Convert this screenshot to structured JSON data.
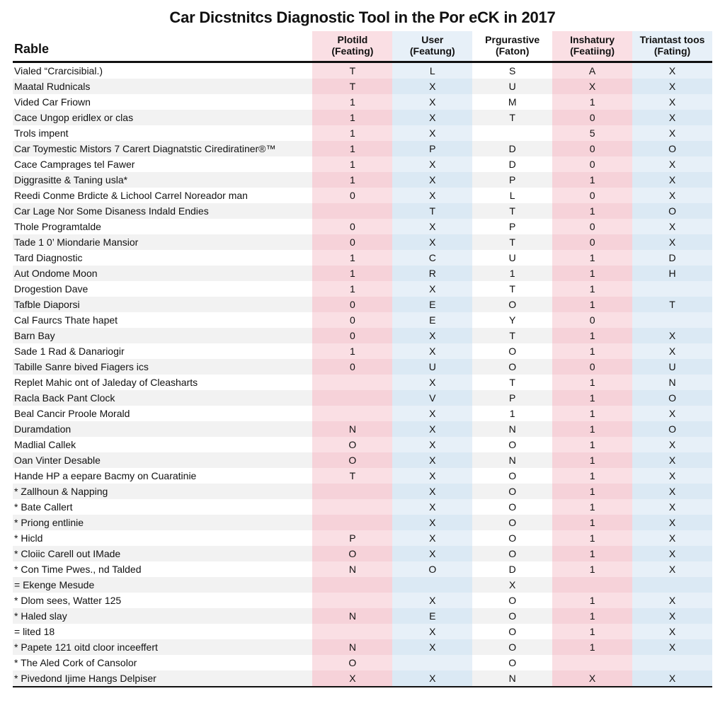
{
  "title": "Car Dicstnitcs Diagnostic Tool in the Por eCK in 2017",
  "row_header": "Rable",
  "columns": [
    {
      "top": "Plotild",
      "sub": "(Feating)",
      "tint": "pink"
    },
    {
      "top": "User",
      "sub": "(Featung)",
      "tint": "blue"
    },
    {
      "top": "Prgurastive",
      "sub": "(Faton)",
      "tint": "plain"
    },
    {
      "top": "Inshatury",
      "sub": "(Featiing)",
      "tint": "pink"
    },
    {
      "top": "Triantast toos",
      "sub": "(Fating)",
      "tint": "blue"
    }
  ],
  "colors": {
    "pink_a": "#fadfe4",
    "pink_b": "#f6d2d9",
    "blue_a": "#e7f0f8",
    "blue_b": "#dbe9f4",
    "plain_a": "#ffffff",
    "plain_b": "#f2f2f2",
    "rule": "#111111"
  },
  "rows": [
    {
      "label": "Vialed “Crarcisibial.)",
      "v": [
        "T",
        "L",
        "S",
        "A",
        "X"
      ]
    },
    {
      "label": "Maatal Rudnicals",
      "v": [
        "T",
        "X",
        "U",
        "X",
        "X"
      ]
    },
    {
      "label": "Vided Car Friown",
      "v": [
        "1",
        "X",
        "M",
        "1",
        "X"
      ]
    },
    {
      "label": "Cace Ungop eridlex or clas",
      "v": [
        "1",
        "X",
        "T",
        "0",
        "X"
      ]
    },
    {
      "label": "Trols impent",
      "v": [
        "1",
        "X",
        "",
        "5",
        "X"
      ]
    },
    {
      "label": "Car Toymestic Mistors 7 Carert Diagnatstic Cirediratiner®™",
      "v": [
        "1",
        "P",
        "D",
        "0",
        "O"
      ]
    },
    {
      "label": "Cace Camprages tel Fawer",
      "v": [
        "1",
        "X",
        "D",
        "0",
        "X"
      ]
    },
    {
      "label": "Diggrasitte & Taning usla*",
      "v": [
        "1",
        "X",
        "P",
        "1",
        "X"
      ]
    },
    {
      "label": "Reedi Conme Brdicte & Lichool Carrel Noreador man",
      "v": [
        "0",
        "X",
        "L",
        "0",
        "X"
      ]
    },
    {
      "label": "Car Lage Nor Some Disaness Indald Endies",
      "v": [
        "",
        "T",
        "T",
        "1",
        "O"
      ]
    },
    {
      "label": "Thole Programtalde",
      "v": [
        "0",
        "X",
        "P",
        "0",
        "X"
      ]
    },
    {
      "label": "Tade 1 0’ Miondarie Mansior",
      "v": [
        "0",
        "X",
        "T",
        "0",
        "X"
      ]
    },
    {
      "label": "Tard Diagnostic",
      "v": [
        "1",
        "C",
        "U",
        "1",
        "D"
      ]
    },
    {
      "label": "Aut Ondome Moon",
      "v": [
        "1",
        "R",
        "1",
        "1",
        "H"
      ]
    },
    {
      "label": "Drogestion Dave",
      "v": [
        "1",
        "X",
        "T",
        "1",
        ""
      ]
    },
    {
      "label": "Tafble Diaporsi",
      "v": [
        "0",
        "E",
        "O",
        "1",
        "T"
      ]
    },
    {
      "label": "Cal Faurcs Thate hapet",
      "v": [
        "0",
        "E",
        "Y",
        "0",
        ""
      ]
    },
    {
      "label": "Barn Bay",
      "v": [
        "0",
        "X",
        "T",
        "1",
        "X"
      ]
    },
    {
      "label": "Sade 1 Rad & Danariogir",
      "v": [
        "1",
        "X",
        "O",
        "1",
        "X"
      ]
    },
    {
      "label": "Tabille Sanre bived Fiagers ics",
      "v": [
        "0",
        "U",
        "O",
        "0",
        "U"
      ]
    },
    {
      "label": "Replet Mahic ont of Jaleday of Cleasharts",
      "v": [
        "",
        "X",
        "T",
        "1",
        "N"
      ]
    },
    {
      "label": "Racla Back Pant Clock",
      "v": [
        "",
        "V",
        "P",
        "1",
        "O"
      ]
    },
    {
      "label": "Beal Cancir Proole Morald",
      "v": [
        "",
        "X",
        "1",
        "1",
        "X"
      ]
    },
    {
      "label": "Duramdation",
      "v": [
        "N",
        "X",
        "N",
        "1",
        "O"
      ]
    },
    {
      "label": "Madlial Callek",
      "v": [
        "O",
        "X",
        "O",
        "1",
        "X"
      ]
    },
    {
      "label": "Oan Vinter Desable",
      "v": [
        "O",
        "X",
        "N",
        "1",
        "X"
      ]
    },
    {
      "label": "Hande HP a eepare Bacmy on Cuaratinie",
      "v": [
        "T",
        "X",
        "O",
        "1",
        "X"
      ]
    },
    {
      "label": "* Zallhoun & Napping",
      "v": [
        "",
        "X",
        "O",
        "1",
        "X"
      ]
    },
    {
      "label": "* Bate Callert",
      "v": [
        "",
        "X",
        "O",
        "1",
        "X"
      ]
    },
    {
      "label": "* Priong entlinie",
      "v": [
        "",
        "X",
        "O",
        "1",
        "X"
      ]
    },
    {
      "label": "* Hicld",
      "v": [
        "P",
        "X",
        "O",
        "1",
        "X"
      ]
    },
    {
      "label": "* Cloiic Carell out IMade",
      "v": [
        "O",
        "X",
        "O",
        "1",
        "X"
      ]
    },
    {
      "label": "* Con Time Pwes., nd Talded",
      "v": [
        "N",
        "O",
        "D",
        "1",
        "X"
      ]
    },
    {
      "label": "= Ekenge Mesude",
      "v": [
        "",
        "",
        "X",
        "",
        ""
      ]
    },
    {
      "label": "* Dlom sees, Watter 125",
      "v": [
        "",
        "X",
        "O",
        "1",
        "X"
      ]
    },
    {
      "label": "* Haled slay",
      "v": [
        "N",
        "E",
        "O",
        "1",
        "X"
      ]
    },
    {
      "label": "= lited 18",
      "v": [
        "",
        "X",
        "O",
        "1",
        "X"
      ]
    },
    {
      "label": "* Papete 121 oitd cloor inceeffert",
      "v": [
        "N",
        "X",
        "O",
        "1",
        "X"
      ]
    },
    {
      "label": "* The Aled Cork of Cansolor",
      "v": [
        "O",
        "",
        "O",
        "",
        ""
      ]
    },
    {
      "label": "* Pivedond Ijime Hangs Delpiser",
      "v": [
        "X",
        "X",
        "N",
        "X",
        "X"
      ]
    }
  ]
}
